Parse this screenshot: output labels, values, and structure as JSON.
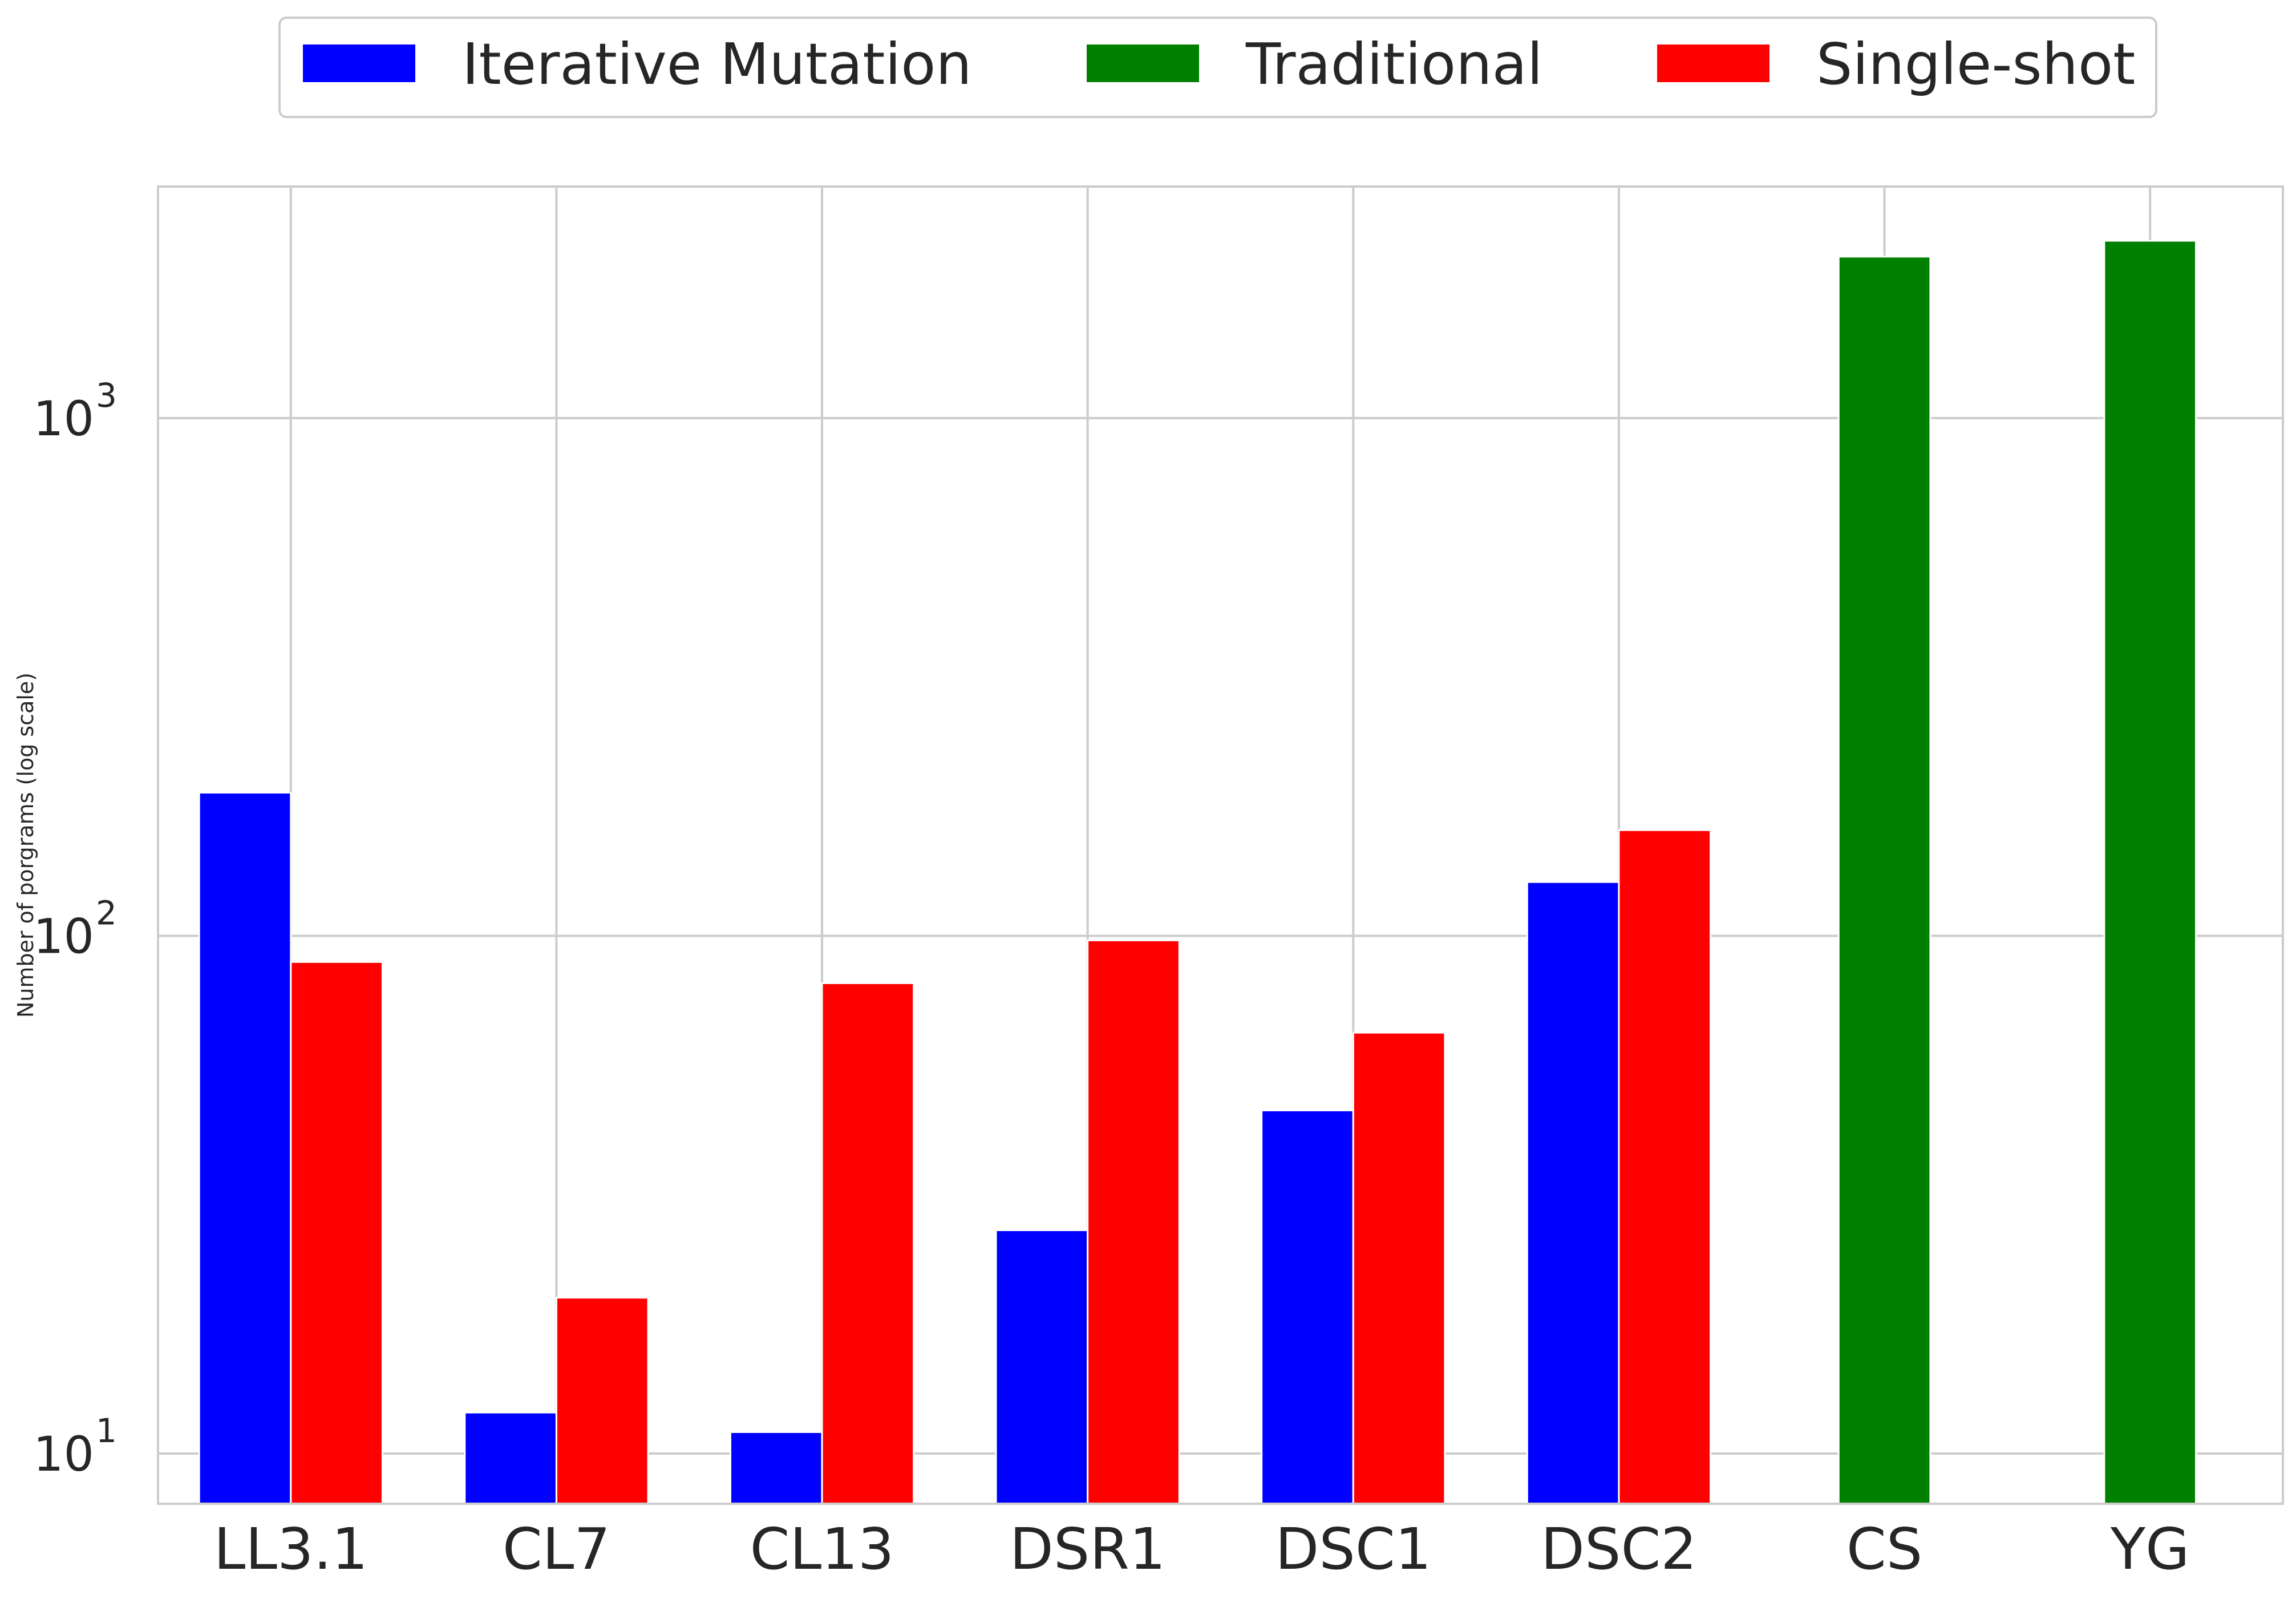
{
  "chart_data": {
    "type": "bar",
    "title": "",
    "xlabel": "",
    "ylabel": "Number of porgrams (log scale)",
    "yscale": "log",
    "ylim": [
      8,
      2800
    ],
    "yticks": [
      {
        "value": 10,
        "base": "10",
        "exp": "1"
      },
      {
        "value": 100,
        "base": "10",
        "exp": "2"
      },
      {
        "value": 1000,
        "base": "10",
        "exp": "3"
      }
    ],
    "grid": true,
    "legend_position": "top-center",
    "categories": [
      "LL3.1",
      "CL7",
      "CL13",
      "DSR1",
      "DSC1",
      "DSC2",
      "CS",
      "YG"
    ],
    "series": [
      {
        "name": "Iterative Mutation",
        "color": "#0000ff",
        "values": [
          189,
          12,
          11,
          27,
          46,
          127,
          null,
          null
        ]
      },
      {
        "name": "Traditional",
        "color": "#008000",
        "values": [
          null,
          null,
          null,
          null,
          null,
          null,
          2050,
          2200
        ]
      },
      {
        "name": "Single-shot",
        "color": "#ff0000",
        "values": [
          89,
          20,
          81,
          98,
          65,
          160,
          null,
          null
        ]
      }
    ]
  }
}
